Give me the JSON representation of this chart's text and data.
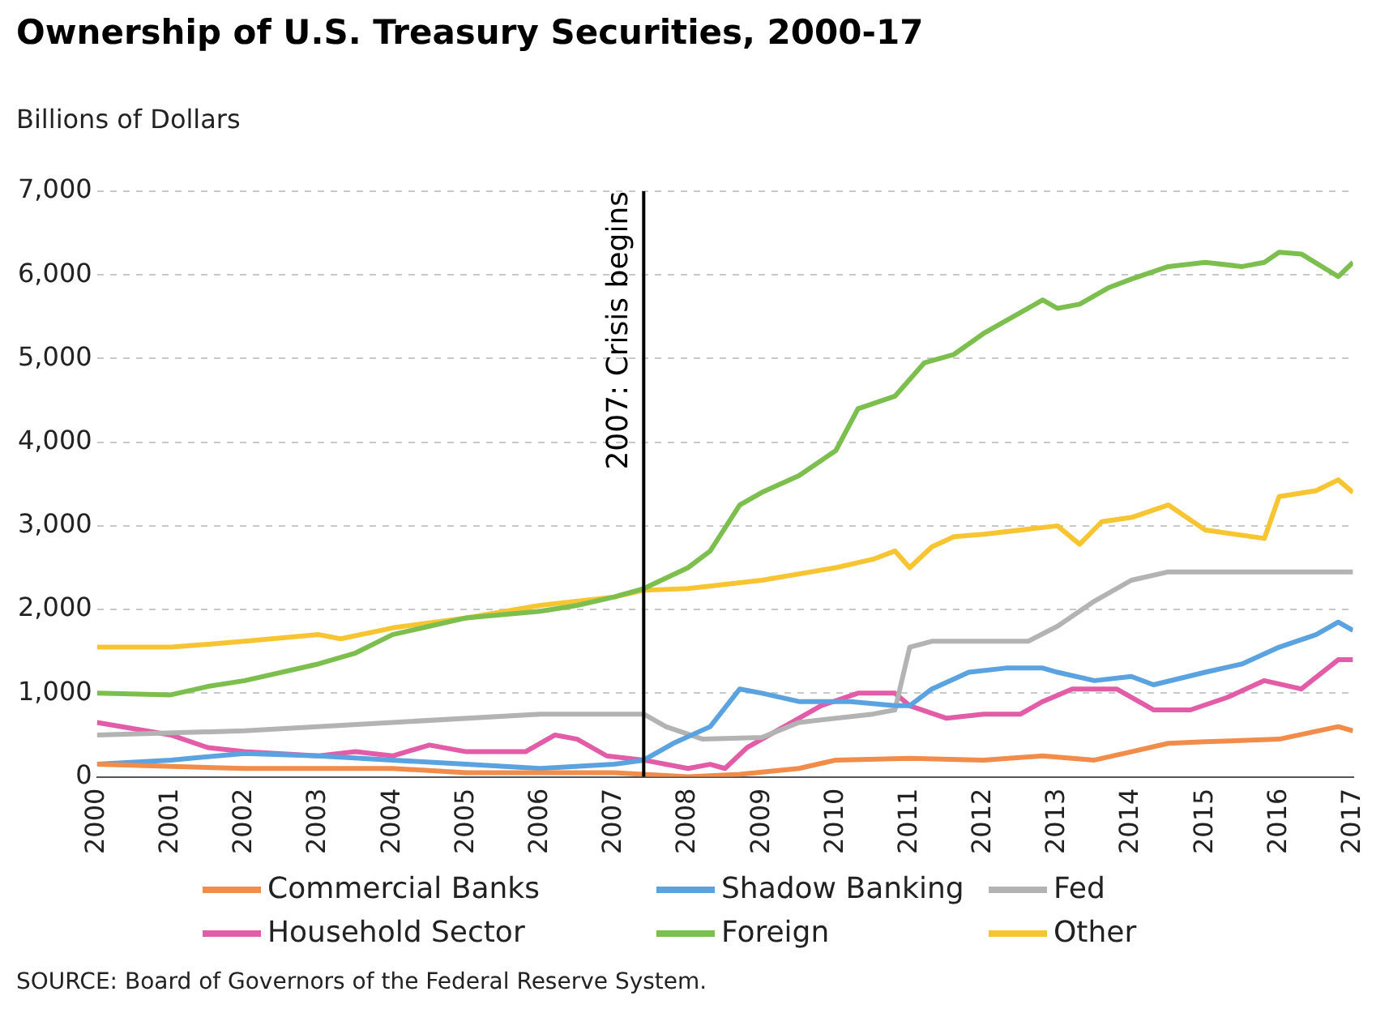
{
  "chart_data": {
    "type": "line",
    "title": "Ownership of U.S. Treasury Securities, 2000-17",
    "ylabel": "Billions of Dollars",
    "xlim": [
      2000,
      2017
    ],
    "xticks": [
      2000,
      2001,
      2002,
      2003,
      2004,
      2005,
      2006,
      2007,
      2008,
      2009,
      2010,
      2011,
      2012,
      2013,
      2014,
      2015,
      2016,
      2017
    ],
    "ylim": [
      0,
      7000
    ],
    "yticks": [
      0,
      {
        "value": 1000,
        "label": "1,000"
      },
      {
        "value": 2000,
        "label": "2,000"
      },
      {
        "value": 3000,
        "label": "3,000"
      },
      {
        "value": 4000,
        "label": "4,000"
      },
      {
        "value": 5000,
        "label": "5,000"
      },
      {
        "value": 6000,
        "label": "6,000"
      },
      {
        "value": 7000,
        "label": "7,000"
      }
    ],
    "grid": "y",
    "legend": "bottom",
    "marker": "none",
    "line_style": "solid",
    "ref_lines": [
      {
        "axis": "x",
        "value": 2007.4,
        "label": "2007: Crisis begins",
        "color": "#000000"
      }
    ],
    "annotations": [
      "SOURCE: Board of Governors of the Federal Reserve System."
    ],
    "series": [
      {
        "name": "Commercial Banks",
        "color": "#f28c4a",
        "x": [
          2000,
          2002,
          2004,
          2005,
          2006,
          2007,
          2008,
          2008.7,
          2009.5,
          2010,
          2011,
          2012,
          2012.8,
          2013.5,
          2014,
          2014.5,
          2015,
          2016,
          2016.8,
          2017
        ],
        "values": [
          150,
          100,
          100,
          50,
          50,
          50,
          0,
          30,
          100,
          200,
          220,
          200,
          250,
          200,
          300,
          400,
          420,
          450,
          600,
          550
        ]
      },
      {
        "name": "Shadow Banking",
        "color": "#5ba3e0",
        "x": [
          2000,
          2001,
          2002,
          2003,
          2004,
          2005,
          2006,
          2007,
          2007.4,
          2007.8,
          2008.3,
          2008.7,
          2009,
          2009.5,
          2010.2,
          2010.8,
          2011,
          2011.3,
          2011.8,
          2012.3,
          2012.8,
          2013,
          2013.5,
          2014,
          2014.3,
          2015,
          2015.5,
          2016,
          2016.5,
          2016.8,
          2017
        ],
        "values": [
          150,
          200,
          280,
          250,
          200,
          150,
          100,
          150,
          200,
          400,
          600,
          1050,
          1000,
          900,
          900,
          850,
          850,
          1050,
          1250,
          1300,
          1300,
          1250,
          1150,
          1200,
          1100,
          1250,
          1350,
          1550,
          1700,
          1850,
          1750
        ]
      },
      {
        "name": "Fed",
        "color": "#b3b3b3",
        "x": [
          2000,
          2002,
          2004,
          2006,
          2007.4,
          2007.7,
          2008.2,
          2009,
          2009.5,
          2010.5,
          2010.8,
          2011,
          2011.3,
          2012.6,
          2013,
          2013.5,
          2014,
          2014.5,
          2017
        ],
        "values": [
          500,
          550,
          650,
          750,
          750,
          600,
          450,
          470,
          650,
          750,
          800,
          1550,
          1620,
          1620,
          1800,
          2100,
          2350,
          2450,
          2450
        ]
      },
      {
        "name": "Household Sector",
        "color": "#e35ca8",
        "x": [
          2000,
          2001,
          2001.5,
          2002,
          2003,
          2003.5,
          2004,
          2004.5,
          2005,
          2005.8,
          2006.2,
          2006.5,
          2006.9,
          2007.4,
          2008,
          2008.3,
          2008.5,
          2008.8,
          2009.3,
          2009.8,
          2010.3,
          2010.8,
          2011,
          2011.5,
          2012,
          2012.5,
          2012.8,
          2013.2,
          2013.8,
          2014.3,
          2014.8,
          2015.3,
          2015.8,
          2016.3,
          2016.8,
          2017
        ],
        "values": [
          650,
          500,
          350,
          300,
          250,
          300,
          250,
          380,
          300,
          300,
          500,
          450,
          250,
          200,
          100,
          150,
          100,
          350,
          600,
          850,
          1000,
          1000,
          850,
          700,
          750,
          750,
          900,
          1050,
          1050,
          800,
          800,
          950,
          1150,
          1050,
          1400,
          1400
        ]
      },
      {
        "name": "Foreign",
        "color": "#7cbf4f",
        "x": [
          2000,
          2001,
          2001.5,
          2002,
          2003,
          2003.5,
          2004,
          2004.5,
          2005,
          2006,
          2006.5,
          2007,
          2007.4,
          2008,
          2008.3,
          2008.7,
          2009,
          2009.5,
          2010,
          2010.3,
          2010.8,
          2011.2,
          2011.6,
          2012,
          2012.5,
          2012.8,
          2013,
          2013.3,
          2013.7,
          2014,
          2014.5,
          2015,
          2015.5,
          2015.8,
          2016,
          2016.3,
          2016.8,
          2017
        ],
        "values": [
          1000,
          980,
          1080,
          1150,
          1350,
          1480,
          1700,
          1800,
          1900,
          1980,
          2050,
          2150,
          2250,
          2500,
          2700,
          3250,
          3400,
          3600,
          3900,
          4400,
          4550,
          4950,
          5050,
          5300,
          5550,
          5700,
          5600,
          5650,
          5850,
          5950,
          6100,
          6150,
          6100,
          6150,
          6270,
          6250,
          5980,
          6150
        ]
      },
      {
        "name": "Other",
        "color": "#f7c531",
        "x": [
          2000,
          2001,
          2002,
          2003,
          2003.3,
          2004,
          2005,
          2006,
          2007,
          2007.4,
          2008,
          2009,
          2010,
          2010.5,
          2010.8,
          2011,
          2011.3,
          2011.6,
          2012,
          2013,
          2013.3,
          2013.6,
          2014,
          2014.5,
          2015,
          2015.8,
          2016,
          2016.5,
          2016.8,
          2017
        ],
        "values": [
          1550,
          1550,
          1620,
          1700,
          1650,
          1780,
          1900,
          2050,
          2150,
          2230,
          2250,
          2350,
          2500,
          2600,
          2700,
          2500,
          2750,
          2870,
          2900,
          3000,
          2780,
          3050,
          3100,
          3250,
          2950,
          2850,
          3350,
          3420,
          3550,
          3400
        ]
      }
    ]
  }
}
